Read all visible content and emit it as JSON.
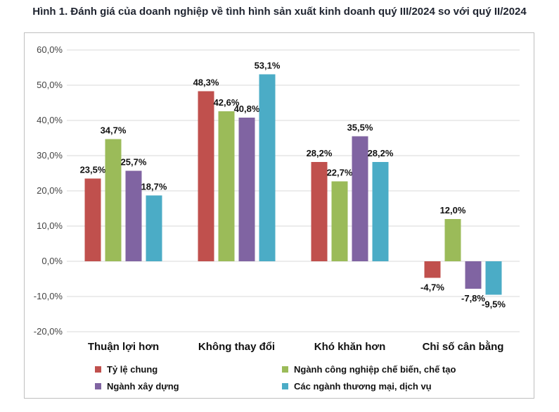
{
  "title": "Hình 1. Đánh giá của doanh nghiệp về tình hình sản xuất kinh doanh quý III/2024 so với quý II/2024",
  "chart_data": {
    "type": "bar",
    "title": "Hình 1. Đánh giá của doanh nghiệp về tình hình sản xuất kinh doanh quý III/2024 so với quý II/2024",
    "xlabel": "",
    "ylabel": "",
    "categories": [
      "Thuận lợi hơn",
      "Không thay đổi",
      "Khó khăn hơn",
      "Chỉ số cân bằng"
    ],
    "ylim": [
      -20,
      60
    ],
    "yticks": [
      -20,
      -10,
      0,
      10,
      20,
      30,
      40,
      50,
      60
    ],
    "ytick_labels": [
      "-20,0%",
      "-10,0%",
      "0,0%",
      "10,0%",
      "20,0%",
      "30,0%",
      "40,0%",
      "50,0%",
      "60,0%"
    ],
    "grid": true,
    "legend_position": "bottom",
    "series": [
      {
        "name": "Tỷ lệ chung",
        "color": "#c0504d",
        "values": [
          23.5,
          48.3,
          28.2,
          -4.7
        ],
        "labels": [
          "23,5%",
          "48,3%",
          "28,2%",
          "-4,7%"
        ]
      },
      {
        "name": "Ngành công nghiệp chế biến, chế tạo",
        "color": "#9bbb59",
        "values": [
          34.7,
          42.6,
          22.7,
          12.0
        ],
        "labels": [
          "34,7%",
          "42,6%",
          "22,7%",
          "12,0%"
        ]
      },
      {
        "name": "Ngành xây dựng",
        "color": "#8064a2",
        "values": [
          25.7,
          40.8,
          35.5,
          -7.8
        ],
        "labels": [
          "25,7%",
          "40,8%",
          "35,5%",
          "-7,8%"
        ]
      },
      {
        "name": "Các ngành thương mại, dịch vụ",
        "color": "#4bacc6",
        "values": [
          18.7,
          53.1,
          28.2,
          -9.5
        ],
        "labels": [
          "18,7%",
          "53,1%",
          "28,2%",
          "-9,5%"
        ]
      }
    ]
  }
}
